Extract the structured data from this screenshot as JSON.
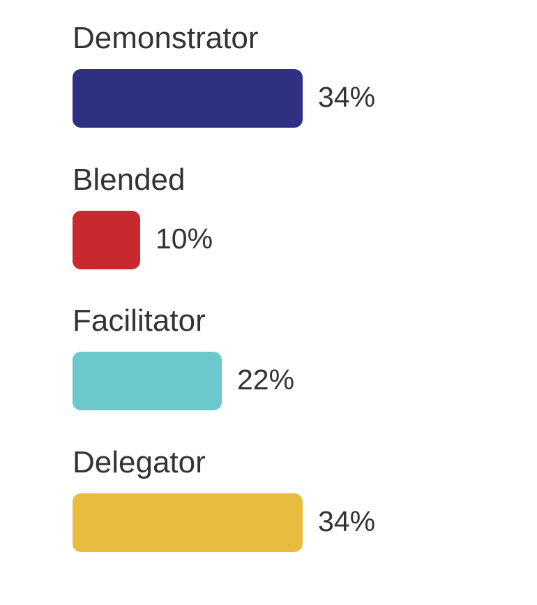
{
  "chart_data": {
    "type": "bar",
    "orientation": "horizontal",
    "title": "",
    "xlabel": "",
    "ylabel": "",
    "categories": [
      "Demonstrator",
      "Blended",
      "Facilitator",
      "Delegator"
    ],
    "values": [
      34,
      10,
      22,
      34
    ],
    "value_labels": [
      "34%",
      "10%",
      "22%",
      "34%"
    ],
    "unit": "%",
    "colors": [
      "#2e3182",
      "#c8292f",
      "#6bc8cb",
      "#e8bc3e"
    ],
    "xlim": [
      0,
      34
    ],
    "grid": false,
    "legend": "none"
  }
}
